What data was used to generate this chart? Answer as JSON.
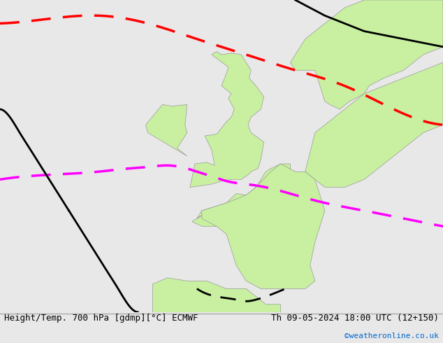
{
  "title_left": "Height/Temp. 700 hPa [gdmp][°C] ECMWF",
  "title_right": "Th 09-05-2024 18:00 UTC (12+150)",
  "watermark": "©weatheronline.co.uk",
  "bg_color": "#e8e8e8",
  "land_color": "#c8f0a0",
  "border_color": "#aaaaaa",
  "map_extent": [
    -25,
    20,
    42,
    62
  ],
  "figure_size": [
    6.34,
    4.9
  ],
  "dpi": 100
}
